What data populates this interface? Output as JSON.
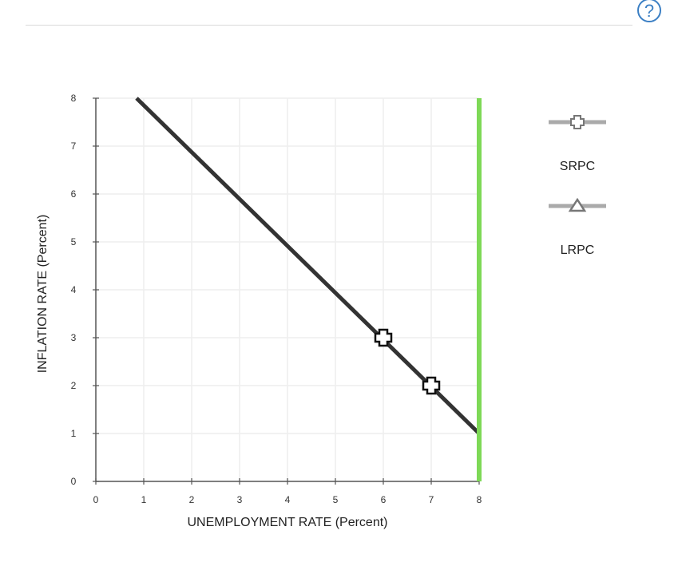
{
  "help": {
    "icon": "help-icon",
    "label": "?"
  },
  "colors": {
    "srpc_line": "#333333",
    "lrpc_line": "#7ed957",
    "legend_line": "#aaaaaa",
    "grid": "#eeeeee",
    "axis": "#555555",
    "help_accent": "#3b7fc4"
  },
  "legend": {
    "items": [
      {
        "label": "SRPC",
        "marker": "plus"
      },
      {
        "label": "LRPC",
        "marker": "triangle"
      }
    ]
  },
  "chart_data": {
    "type": "line",
    "xlabel": "UNEMPLOYMENT RATE (Percent)",
    "ylabel": "INFLATION RATE (Percent)",
    "xlim": [
      0,
      8
    ],
    "ylim": [
      0,
      8
    ],
    "xticks": [
      "0",
      "1",
      "2",
      "3",
      "4",
      "5",
      "6",
      "7",
      "8"
    ],
    "yticks": [
      "0",
      "1",
      "2",
      "3",
      "4",
      "5",
      "6",
      "7",
      "8"
    ],
    "grid": true,
    "legend_position": "right",
    "series": [
      {
        "name": "SRPC",
        "line": [
          [
            0.85,
            8
          ],
          [
            8,
            1
          ]
        ],
        "markers": [
          [
            6,
            3
          ],
          [
            7,
            2
          ]
        ],
        "marker": "plus"
      },
      {
        "name": "LRPC",
        "line": [
          [
            8,
            0
          ],
          [
            8,
            8
          ]
        ],
        "markers": []
      }
    ]
  }
}
